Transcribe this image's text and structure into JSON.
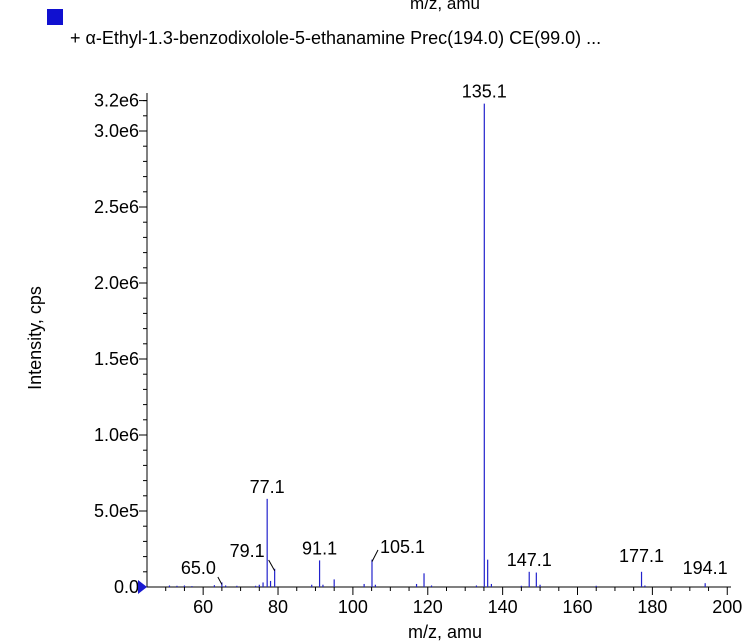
{
  "chart_data": {
    "type": "bar",
    "clipped_header": "m/z, amu",
    "legend": {
      "label": "+ α-Ethyl-1.3-benzodixolole-5-ethanamine Prec(194.0) CE(99.0) ...",
      "color": "#1010d0",
      "placement": "top-left"
    },
    "xlabel": "m/z, amu",
    "ylabel": "Intensity, cps",
    "xlim": [
      45,
      201
    ],
    "ylim": [
      0,
      3250000.0
    ],
    "x_ticks": [
      60,
      80,
      100,
      120,
      140,
      160,
      180,
      200
    ],
    "y_ticks": [
      {
        "value": 0,
        "label": "0.0"
      },
      {
        "value": 500000,
        "label": "5.0e5"
      },
      {
        "value": 1000000,
        "label": "1.0e6"
      },
      {
        "value": 1500000,
        "label": "1.5e6"
      },
      {
        "value": 2000000,
        "label": "2.0e6"
      },
      {
        "value": 2500000,
        "label": "2.5e6"
      },
      {
        "value": 3000000,
        "label": "3.0e6"
      },
      {
        "value": 3200000,
        "label": "3.2e6"
      }
    ],
    "series_color": "#2222cc",
    "peaks": [
      {
        "mz": 51.0,
        "intensity": 10000
      },
      {
        "mz": 53.0,
        "intensity": 8000
      },
      {
        "mz": 55.0,
        "intensity": 10000
      },
      {
        "mz": 57.0,
        "intensity": 6000
      },
      {
        "mz": 63.0,
        "intensity": 12000
      },
      {
        "mz": 65.0,
        "intensity": 30000,
        "label": "65.0"
      },
      {
        "mz": 66.0,
        "intensity": 10000
      },
      {
        "mz": 69.0,
        "intensity": 8000
      },
      {
        "mz": 74.0,
        "intensity": 8000
      },
      {
        "mz": 75.0,
        "intensity": 15000
      },
      {
        "mz": 76.0,
        "intensity": 30000
      },
      {
        "mz": 77.1,
        "intensity": 580000,
        "label": "77.1"
      },
      {
        "mz": 78.0,
        "intensity": 40000
      },
      {
        "mz": 79.1,
        "intensity": 120000,
        "label": "79.1"
      },
      {
        "mz": 89.0,
        "intensity": 15000
      },
      {
        "mz": 91.1,
        "intensity": 175000,
        "label": "91.1"
      },
      {
        "mz": 92.0,
        "intensity": 15000
      },
      {
        "mz": 95.0,
        "intensity": 50000
      },
      {
        "mz": 103.0,
        "intensity": 20000
      },
      {
        "mz": 105.1,
        "intensity": 180000,
        "label": "105.1"
      },
      {
        "mz": 106.0,
        "intensity": 15000
      },
      {
        "mz": 117.0,
        "intensity": 20000
      },
      {
        "mz": 119.0,
        "intensity": 90000
      },
      {
        "mz": 121.0,
        "intensity": 10000
      },
      {
        "mz": 133.0,
        "intensity": 10000
      },
      {
        "mz": 135.1,
        "intensity": 3180000,
        "label": "135.1"
      },
      {
        "mz": 136.0,
        "intensity": 180000
      },
      {
        "mz": 137.0,
        "intensity": 20000
      },
      {
        "mz": 145.0,
        "intensity": 8000
      },
      {
        "mz": 147.1,
        "intensity": 100000,
        "label": "147.1"
      },
      {
        "mz": 149.0,
        "intensity": 95000
      },
      {
        "mz": 150.0,
        "intensity": 15000
      },
      {
        "mz": 165.0,
        "intensity": 8000
      },
      {
        "mz": 177.1,
        "intensity": 100000,
        "label": "177.1"
      },
      {
        "mz": 178.0,
        "intensity": 10000
      },
      {
        "mz": 194.1,
        "intensity": 25000,
        "label": "194.1"
      }
    ]
  }
}
